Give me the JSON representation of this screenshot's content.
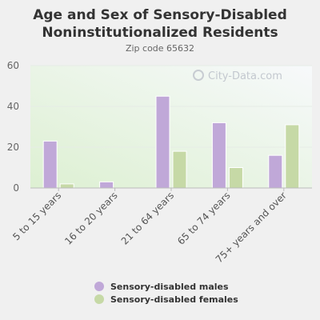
{
  "colors": {
    "males": "#c0a8d8",
    "females": "#c6d9a6",
    "background": "#f0f0f0"
  },
  "watermark": "City-Data.com",
  "chart_data": {
    "type": "bar",
    "title": "Age and Sex of Sensory-Disabled Noninstitutionalized Residents",
    "title_lines": [
      "Age and Sex of Sensory-Disabled",
      "Noninstitutionalized Residents"
    ],
    "subtitle": "Zip code 65632",
    "categories": [
      "5 to 15 years",
      "16 to 20 years",
      "21 to 64 years",
      "65 to 74 years",
      "75+ years and over"
    ],
    "series": [
      {
        "name": "Sensory-disabled males",
        "values": [
          23,
          3,
          45,
          32,
          16
        ]
      },
      {
        "name": "Sensory-disabled females",
        "values": [
          2,
          0,
          18,
          10,
          31
        ]
      }
    ],
    "yticks": [
      0,
      20,
      40,
      60
    ],
    "ylim": [
      0,
      60
    ],
    "grid": true,
    "legend_position": "bottom"
  }
}
